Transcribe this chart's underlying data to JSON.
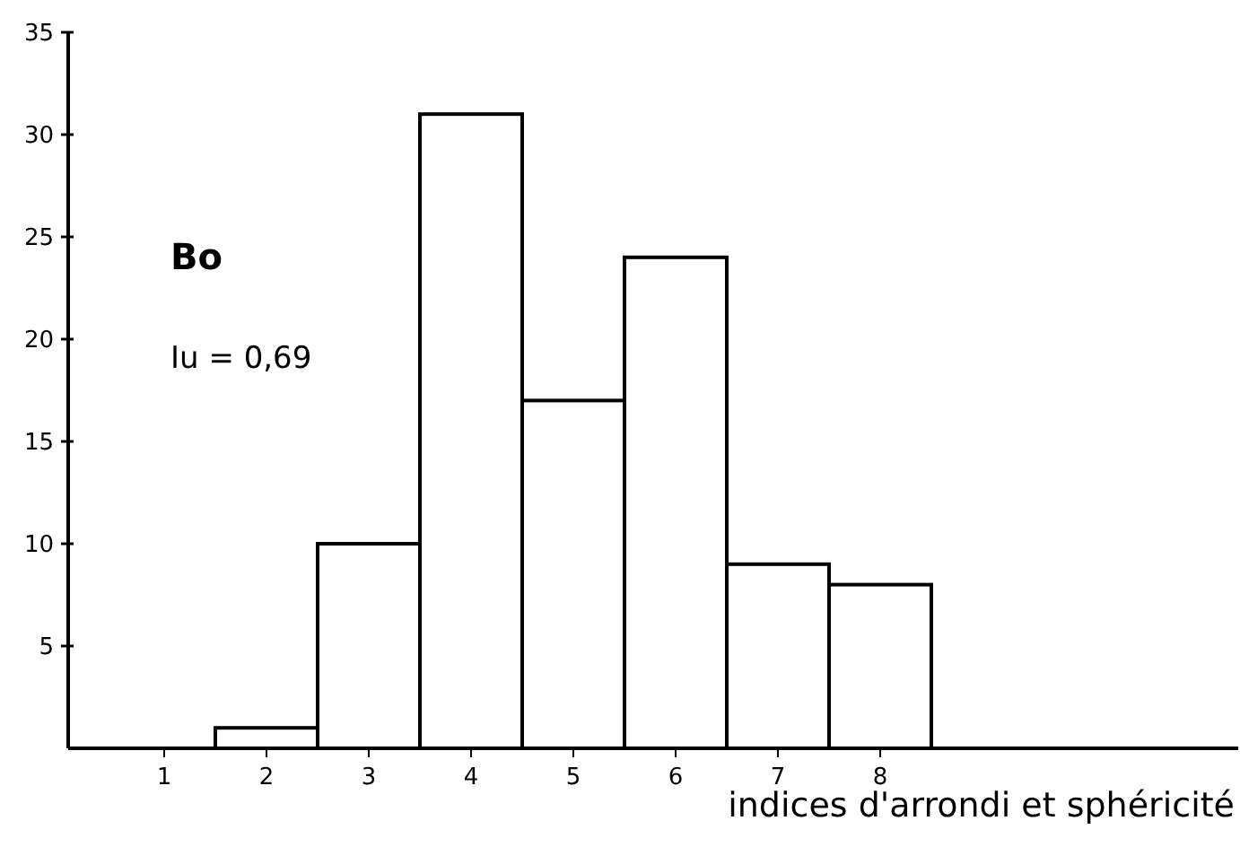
{
  "chart_data": {
    "type": "bar",
    "xlabel": "indices d'arrondi et sphéricité",
    "categories": [
      "1",
      "2",
      "3",
      "4",
      "5",
      "6",
      "7",
      "8"
    ],
    "values": [
      0,
      1,
      10,
      31,
      17,
      24,
      9,
      8
    ],
    "color": "#ffffff",
    "ylim": [
      0,
      35
    ],
    "yticks": [
      5,
      10,
      15,
      20,
      25,
      30,
      35
    ],
    "grid": false,
    "annotations": [
      "Bo",
      "Iu = 0,69"
    ]
  }
}
